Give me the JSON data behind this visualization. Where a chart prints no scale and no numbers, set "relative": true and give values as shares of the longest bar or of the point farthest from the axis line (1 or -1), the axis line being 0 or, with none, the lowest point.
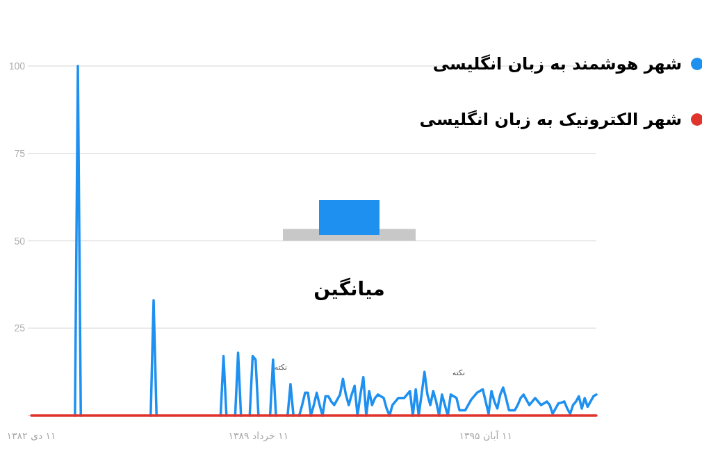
{
  "chart_data": [
    {
      "type": "line",
      "ylim": [
        0,
        100
      ],
      "categories": [
        "۱۱ دی ۱۳۸۲",
        null,
        null,
        null,
        null,
        null,
        null,
        null,
        null,
        null,
        null,
        null,
        null,
        null,
        null,
        null,
        null,
        null,
        null,
        null,
        null,
        null,
        null,
        null,
        null,
        null,
        null,
        null,
        null,
        null,
        null,
        null,
        null,
        null,
        null,
        null,
        null,
        null,
        null,
        null,
        null,
        null,
        null,
        null,
        null,
        null,
        null,
        null,
        null,
        null,
        null,
        null,
        null,
        null,
        null,
        null,
        null,
        null,
        null,
        null,
        null,
        null,
        null,
        null,
        null,
        null,
        null,
        null,
        null,
        null,
        null,
        null,
        null,
        null,
        null,
        null,
        null,
        null,
        "۱۱ خرداد ۱۳۸۹",
        null,
        null,
        null,
        null,
        null,
        null,
        null,
        null,
        null,
        null,
        null,
        null,
        null,
        null,
        null,
        null,
        null,
        null,
        null,
        null,
        null,
        null,
        null,
        null,
        null,
        null,
        null,
        null,
        null,
        null,
        null,
        null,
        null,
        null,
        null,
        null,
        null,
        null,
        null,
        null,
        null,
        null,
        null,
        null,
        null,
        null,
        null,
        null,
        null,
        null,
        null,
        null,
        null,
        null,
        null,
        null,
        null,
        null,
        null,
        null,
        null,
        null,
        null,
        null,
        null,
        null,
        null,
        null,
        null,
        null,
        null,
        null,
        null,
        null,
        null,
        null,
        null,
        "۱۱ آبان ۱۳۹۵",
        null,
        null,
        null,
        null,
        null,
        null,
        null,
        null,
        null,
        null,
        null,
        null,
        null,
        null,
        null,
        null,
        null,
        null,
        null,
        null,
        null,
        null,
        null,
        null,
        null,
        null,
        null,
        null,
        null,
        null,
        null,
        null,
        null,
        null,
        null,
        null,
        null,
        null
      ],
      "yticks": [
        25,
        50,
        75,
        100
      ],
      "grid": "y",
      "legend": "top right",
      "annotations": [
        "نکته",
        "نکته"
      ],
      "series": [
        {
          "name": "شهر هوشمند به زبان انگلیسی",
          "color": "#1e90f0",
          "values": [
            null,
            null,
            null,
            null,
            null,
            null,
            null,
            null,
            null,
            null,
            null,
            null,
            null,
            null,
            null,
            0,
            100,
            0,
            null,
            null,
            null,
            null,
            null,
            null,
            null,
            null,
            null,
            null,
            null,
            null,
            null,
            null,
            null,
            null,
            null,
            null,
            null,
            null,
            null,
            null,
            null,
            0,
            33,
            0,
            null,
            null,
            null,
            null,
            null,
            null,
            null,
            null,
            null,
            null,
            null,
            null,
            null,
            null,
            null,
            null,
            null,
            null,
            null,
            null,
            null,
            0,
            17,
            0,
            null,
            null,
            0,
            18,
            0,
            null,
            null,
            0,
            17,
            16,
            0,
            null,
            null,
            null,
            0,
            16,
            0,
            null,
            null,
            null,
            0,
            9,
            0,
            null,
            0,
            3,
            6.5,
            6.5,
            0,
            3,
            6.5,
            3,
            0,
            5.5,
            5.5,
            4,
            3,
            4.5,
            6,
            10.5,
            6,
            3,
            6,
            8.5,
            0,
            6,
            11,
            0,
            7,
            3,
            5,
            6,
            5.5,
            5,
            2,
            0,
            3,
            4,
            5,
            5,
            5,
            6,
            7,
            0,
            7.5,
            0,
            6,
            12.5,
            6,
            3,
            7,
            4,
            0,
            6,
            3,
            0,
            6,
            5.5,
            5,
            1.5,
            1.5,
            1.5,
            3,
            4.5,
            5.5,
            6.5,
            7,
            7.5,
            4,
            0.5,
            7,
            4,
            2,
            6,
            8,
            5,
            1.5,
            1.5,
            1.5,
            3,
            5,
            6,
            4.5,
            3,
            4,
            5,
            4,
            3,
            3.5,
            4,
            3,
            0.5,
            2,
            3.5,
            3.7,
            4,
            2,
            0.5,
            3,
            4,
            5.5,
            2,
            5,
            2.5,
            4,
            5.5,
            6
          ]
        },
        {
          "name": "شهر الکترونیک به زبان انگلیسی",
          "color": "#e0332c",
          "values": [
            0,
            0,
            0,
            0,
            0,
            0,
            0,
            0,
            0,
            0,
            0,
            0,
            0,
            0,
            0,
            0,
            0,
            0,
            0,
            0,
            0,
            0,
            0,
            0,
            0,
            0,
            0,
            0,
            0,
            0,
            0,
            0,
            0,
            0,
            0,
            0,
            0,
            0,
            0,
            0,
            0,
            0,
            0,
            0,
            0,
            0,
            0,
            0,
            0,
            0,
            0,
            0,
            0,
            0,
            0,
            0,
            0,
            0,
            0,
            0,
            0,
            0,
            0,
            0,
            0,
            0,
            0,
            0,
            0,
            0,
            0,
            0,
            0,
            0,
            0,
            0,
            0,
            0,
            0,
            0,
            0,
            0,
            0,
            0,
            0,
            0,
            0,
            0,
            0,
            0,
            0,
            0,
            0,
            0,
            0,
            0,
            0,
            0,
            0,
            0,
            0,
            0,
            0,
            0,
            0,
            0,
            0,
            0,
            0,
            0,
            0,
            0,
            0,
            0,
            0,
            0,
            0,
            0,
            0,
            0,
            0,
            0,
            0,
            0,
            0,
            0,
            0,
            0,
            0,
            0,
            0,
            0,
            0,
            0,
            0,
            0,
            0,
            0,
            0,
            0,
            0,
            0,
            0,
            0,
            0,
            0,
            0,
            0,
            0,
            0,
            0,
            0,
            0,
            0,
            0,
            0,
            0,
            0,
            0,
            0,
            0,
            0,
            0,
            0,
            0,
            0,
            0,
            0,
            0,
            0,
            0,
            0,
            0,
            0,
            0,
            0,
            0,
            0,
            0,
            0,
            0,
            0,
            0,
            0,
            0,
            0,
            0,
            0,
            0,
            0,
            0,
            0,
            0,
            0,
            0
          ]
        }
      ]
    },
    {
      "type": "bar",
      "relative": true,
      "categories": [
        "میانگین"
      ],
      "series": [
        {
          "color": "#1e90f0",
          "values": [
            1
          ]
        }
      ]
    }
  ]
}
